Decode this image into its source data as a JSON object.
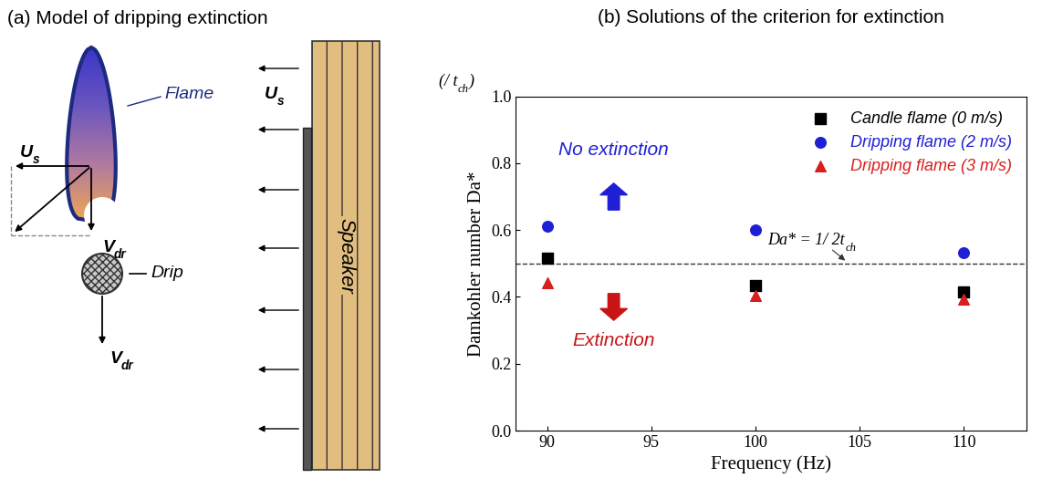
{
  "panel_a": {
    "title": "(a) Model of dripping extinction",
    "flow_label": [
      {
        "text": "U"
      },
      {
        "text": "s",
        "sub": true
      }
    ],
    "velocity_label": [
      {
        "text": "V"
      },
      {
        "text": "dr",
        "sub": true
      }
    ],
    "flame_label": "Flame",
    "drip_label": "Drip",
    "speaker_label": "Speaker"
  },
  "chart_data": {
    "type": "scatter",
    "title": "(b) Solutions of the criterion for extinction",
    "x_label": "Frequency (Hz)",
    "y_label": "Damkohler number Da*",
    "y_unit_label": [
      {
        "text": "(/ t"
      },
      {
        "text": "ch",
        "sub": true
      },
      {
        "text": ")"
      }
    ],
    "x": [
      90,
      100,
      110
    ],
    "xlim": [
      88.5,
      113
    ],
    "xticks": [
      90,
      95,
      100,
      105,
      110
    ],
    "ylim": [
      0,
      1.0
    ],
    "yticks": [
      {
        "value": 0,
        "label": "0.0"
      },
      0.2,
      0.4,
      0.6,
      0.8,
      {
        "value": 1.0,
        "label": "1.0"
      }
    ],
    "legend": "upper right",
    "series": [
      {
        "name": "Candle flame (0 m/s)",
        "color": "#000000",
        "marker": "square",
        "values": [
          0.515,
          0.435,
          0.415
        ]
      },
      {
        "name": "Dripping flame (2 m/s)",
        "color": "#1f1fd6",
        "marker": "circle",
        "values": [
          0.612,
          0.601,
          0.532
        ]
      },
      {
        "name": "Dripping flame (3 m/s)",
        "color": "#d81e1e",
        "marker": "triangle",
        "values": [
          0.443,
          0.405,
          0.393
        ]
      }
    ],
    "annotations": {
      "threshold": {
        "value": 0.5,
        "label": [
          {
            "text": "Da* = 1/ 2t"
          },
          {
            "text": "ch",
            "sub": true
          }
        ]
      },
      "above": {
        "text": "No extinction",
        "color": "#1f1fd6"
      },
      "below": {
        "text": "Extinction",
        "color": "#c81414"
      }
    }
  }
}
